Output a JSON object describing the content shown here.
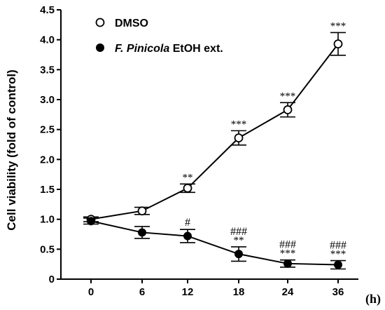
{
  "chart_data": {
    "type": "line",
    "ylabel": "Cell viability  (fold of control)",
    "x_unit": "(h)",
    "categories": [
      "0",
      "6",
      "12",
      "18",
      "24",
      "36"
    ],
    "ylim": [
      0,
      4.5
    ],
    "yticks": [
      "0",
      "0.5",
      "1.0",
      "1.5",
      "2.0",
      "2.5",
      "3.0",
      "3.5",
      "4.0",
      "4.5"
    ],
    "grid": false,
    "legend_position": "top-left",
    "series": [
      {
        "name": "DMSO",
        "marker": "open-circle",
        "values": [
          1.0,
          1.14,
          1.52,
          2.36,
          2.83,
          3.93
        ],
        "errors": [
          0.04,
          0.06,
          0.07,
          0.12,
          0.12,
          0.19
        ],
        "significance": [
          "",
          "",
          "**",
          "***",
          "***",
          "***"
        ],
        "hash": [
          "",
          "",
          "",
          "",
          "",
          ""
        ]
      },
      {
        "name_prefix": "F. Pinicola",
        "name_suffix": " EtOH ext.",
        "marker": "filled-circle",
        "values": [
          0.97,
          0.78,
          0.72,
          0.42,
          0.26,
          0.24
        ],
        "errors": [
          0.05,
          0.1,
          0.11,
          0.12,
          0.06,
          0.07
        ],
        "significance": [
          "",
          "",
          "",
          "**",
          "***",
          "***"
        ],
        "hash": [
          "",
          "",
          "#",
          "###",
          "###",
          "###"
        ]
      }
    ]
  }
}
